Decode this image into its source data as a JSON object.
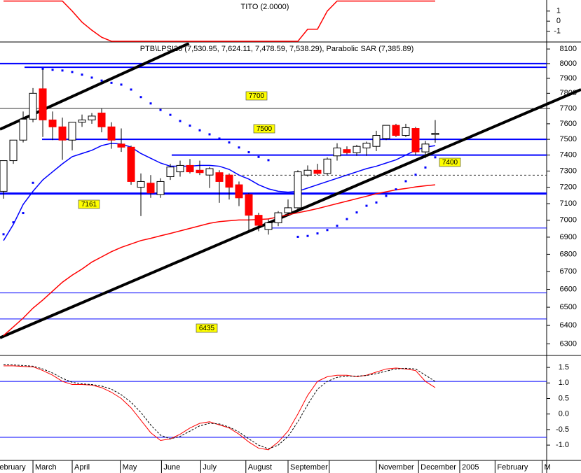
{
  "chart_data": [
    {
      "type": "line",
      "title": "TITO (2.0000)",
      "color": "#ff0000",
      "values": [
        2,
        2,
        2,
        2,
        2,
        2,
        2,
        1.0,
        -0.1,
        -0.9,
        -1.6,
        -2,
        -2,
        -2,
        -2,
        -2,
        -2,
        -2,
        -2,
        -2,
        -2,
        -2,
        -2,
        -2,
        -2,
        -2,
        -2,
        -2,
        -2,
        -2,
        -2,
        -0.8,
        -0.8,
        1.0,
        2,
        2,
        2,
        2,
        2,
        2,
        2,
        2,
        2,
        2,
        2
      ],
      "ylim": [
        -2,
        2.1
      ],
      "yticks": [
        1,
        0,
        -1
      ]
    },
    {
      "type": "candlestick",
      "title": "PTB\\LPSI20 (7,530.95, 7,624.11, 7,478.59, 7,538.29), Parabolic SAR (7,385.89)",
      "x": [
        0,
        1,
        2,
        3,
        4,
        5,
        6,
        7,
        8,
        9,
        10,
        11,
        12,
        13,
        14,
        15,
        16,
        17,
        18,
        19,
        20,
        21,
        22,
        23,
        24,
        25,
        26,
        27,
        28,
        29,
        30,
        31,
        32,
        33,
        34,
        35,
        36,
        37,
        38,
        39,
        40,
        41,
        42,
        43,
        44
      ],
      "open": [
        7175,
        7365,
        7495,
        7630,
        7830,
        7625,
        7580,
        7495,
        7610,
        7625,
        7670,
        7580,
        7470,
        7450,
        7200,
        7225,
        7155,
        7265,
        7295,
        7335,
        7305,
        7275,
        7290,
        7275,
        7215,
        7155,
        7030,
        6945,
        6985,
        7045,
        7075,
        7275,
        7305,
        7285,
        7395,
        7435,
        7415,
        7445,
        7455,
        7505,
        7590,
        7525,
        7570,
        7420,
        7530.95
      ],
      "high": [
        7365,
        7495,
        7680,
        7835,
        7960,
        7680,
        7640,
        7600,
        7660,
        7670,
        7700,
        7610,
        7570,
        7460,
        7285,
        7275,
        7255,
        7345,
        7365,
        7375,
        7365,
        7325,
        7305,
        7285,
        7235,
        7165,
        7045,
        7005,
        7055,
        7125,
        7305,
        7335,
        7345,
        7385,
        7475,
        7455,
        7465,
        7485,
        7555,
        7590,
        7600,
        7600,
        7580,
        7490,
        7624.11
      ],
      "low": [
        7130,
        7345,
        7480,
        7610,
        7515,
        7495,
        7370,
        7430,
        7580,
        7600,
        7545,
        7440,
        7420,
        7215,
        7025,
        7135,
        7135,
        7245,
        7265,
        7285,
        7275,
        7195,
        7105,
        7125,
        7085,
        6935,
        6935,
        6915,
        6965,
        7025,
        7065,
        7265,
        7275,
        7275,
        7365,
        7405,
        7395,
        7395,
        7425,
        7495,
        7515,
        7515,
        7400,
        7380,
        7478.59
      ],
      "close": [
        7365,
        7495,
        7630,
        7800,
        7625,
        7580,
        7495,
        7610,
        7625,
        7650,
        7580,
        7495,
        7450,
        7235,
        7235,
        7165,
        7235,
        7325,
        7335,
        7295,
        7290,
        7315,
        7235,
        7200,
        7135,
        7030,
        6970,
        6985,
        7045,
        7075,
        7295,
        7305,
        7285,
        7375,
        7445,
        7415,
        7455,
        7475,
        7525,
        7590,
        7525,
        7575,
        7420,
        7470,
        7538.29
      ],
      "up_color": "#ffffff",
      "down_color": "#ff0000",
      "series": [
        {
          "color": "#0000ff",
          "values": [
            6880,
            6975,
            7095,
            7175,
            7245,
            7295,
            7345,
            7390,
            7410,
            7430,
            7460,
            7475,
            7470,
            7450,
            7410,
            7380,
            7350,
            7330,
            7330,
            7330,
            7335,
            7335,
            7330,
            7310,
            7275,
            7250,
            7215,
            7190,
            7175,
            7170,
            7175,
            7195,
            7215,
            7235,
            7255,
            7275,
            7295,
            7315,
            7330,
            7350,
            7370,
            7400,
            7430,
            7450,
            7460
          ]
        },
        {
          "color": "#ff0000",
          "values": [
            6345,
            6392,
            6440,
            6495,
            6540,
            6590,
            6640,
            6680,
            6715,
            6755,
            6785,
            6815,
            6840,
            6860,
            6880,
            6893,
            6908,
            6922,
            6937,
            6952,
            6967,
            6982,
            6992,
            6997,
            7002,
            7002,
            7005,
            7008,
            7020,
            7033,
            7045,
            7057,
            7070,
            7085,
            7100,
            7115,
            7130,
            7145,
            7160,
            7172,
            7184,
            7192,
            7202,
            7209,
            7215
          ]
        }
      ],
      "sar": {
        "color": "#0000ff",
        "values": [
          6917,
          6988,
          7043,
          7227,
          7965,
          7958,
          7953,
          7943,
          7925,
          7905,
          7885,
          7870,
          7858,
          7825,
          7775,
          7733,
          7690,
          7658,
          7618,
          7588,
          7558,
          7532,
          7505,
          7480,
          7448,
          7418,
          7388,
          7368,
          null,
          null,
          6902,
          6907,
          6922,
          6942,
          6967,
          7007,
          7047,
          7087,
          7107,
          7147,
          7187,
          7237,
          7277,
          7322,
          7385.89
        ]
      },
      "levels": [
        {
          "value": 8000,
          "color": "#0000ff",
          "width": 2
        },
        {
          "value": 7975,
          "color": "#0000ff",
          "width": 2
        },
        {
          "value": 7700,
          "color": "#333333",
          "width": 1
        },
        {
          "value": 7500,
          "color": "#0000ff",
          "width": 2
        },
        {
          "value": 7400,
          "color": "#0000ff",
          "width": 2
        },
        {
          "value": 7274,
          "color": "#333333",
          "width": 1,
          "dash": true
        },
        {
          "value": 7161,
          "color": "#0000ff",
          "width": 3
        },
        {
          "value": 6954,
          "color": "#0000ff",
          "width": 1
        },
        {
          "value": 6580,
          "color": "#0000ff",
          "width": 1
        },
        {
          "value": 6435,
          "color": "#0000ff",
          "width": 1
        }
      ],
      "annotations": [
        7700,
        7500,
        7400,
        7161,
        6435
      ],
      "trendlines": [
        {
          "x": [
            -0.36,
            18.9
          ],
          "values": [
            7564,
            8139
          ]
        },
        {
          "x": [
            -0.36,
            58.86
          ],
          "values": [
            6333,
            7825
          ]
        }
      ],
      "log_scale": true,
      "ylim": [
        6242,
        8139
      ],
      "yticks": [
        6300,
        6400,
        6500,
        6600,
        6700,
        6800,
        6900,
        7000,
        7100,
        7200,
        7300,
        7400,
        7500,
        7600,
        7700,
        7800,
        7900,
        8000,
        8100
      ],
      "xlim": [
        -0.36,
        55.36
      ],
      "xticks": [
        {
          "value": -1.1,
          "label": "February"
        },
        {
          "value": 3,
          "label": "March"
        },
        {
          "value": 7,
          "label": "April"
        },
        {
          "value": 11.9,
          "label": "May"
        },
        {
          "value": 16.1,
          "label": "June"
        },
        {
          "value": 20.1,
          "label": "July"
        },
        {
          "value": 24.7,
          "label": "August"
        },
        {
          "value": 29,
          "label": "September"
        },
        {
          "value": 33.2,
          "label": null
        },
        {
          "value": 38,
          "label": "November"
        },
        {
          "value": 42.3,
          "label": "December"
        },
        {
          "value": 46.5,
          "label": "2005"
        },
        {
          "value": 50.1,
          "label": "February"
        },
        {
          "value": 54.9,
          "label": "M"
        }
      ]
    },
    {
      "type": "line",
      "series": [
        {
          "color": "#ff0000",
          "values": [
            1.55,
            1.55,
            1.53,
            1.52,
            1.4,
            1.25,
            1.05,
            0.95,
            0.95,
            0.93,
            0.85,
            0.7,
            0.5,
            0.2,
            -0.2,
            -0.6,
            -0.85,
            -0.8,
            -0.65,
            -0.45,
            -0.3,
            -0.25,
            -0.35,
            -0.45,
            -0.65,
            -0.9,
            -1.1,
            -1.15,
            -0.9,
            -0.55,
            0.0,
            0.6,
            1.05,
            1.2,
            1.25,
            1.25,
            1.2,
            1.25,
            1.35,
            1.45,
            1.48,
            1.45,
            1.4,
            1.05,
            0.85
          ]
        },
        {
          "color": "#000000",
          "dash": true,
          "values": [
            1.6,
            1.58,
            1.56,
            1.54,
            1.45,
            1.32,
            1.15,
            1.02,
            0.97,
            0.95,
            0.9,
            0.8,
            0.62,
            0.38,
            0.05,
            -0.35,
            -0.68,
            -0.8,
            -0.72,
            -0.55,
            -0.38,
            -0.3,
            -0.32,
            -0.42,
            -0.58,
            -0.8,
            -1.0,
            -1.12,
            -1.0,
            -0.72,
            -0.25,
            0.3,
            0.8,
            1.05,
            1.18,
            1.22,
            1.22,
            1.24,
            1.3,
            1.38,
            1.45,
            1.47,
            1.45,
            1.25,
            1.05
          ]
        }
      ],
      "levels": [
        1.05,
        -0.75
      ],
      "level_color": "#0000ff",
      "ylim": [
        -1.47,
        1.84
      ],
      "yticks": [
        1.5,
        {
          "value": 1,
          "label": "1.0"
        },
        0.5,
        {
          "value": 0,
          "label": "0.0"
        },
        -0.5,
        {
          "value": -1,
          "label": "-1.0"
        }
      ]
    }
  ]
}
